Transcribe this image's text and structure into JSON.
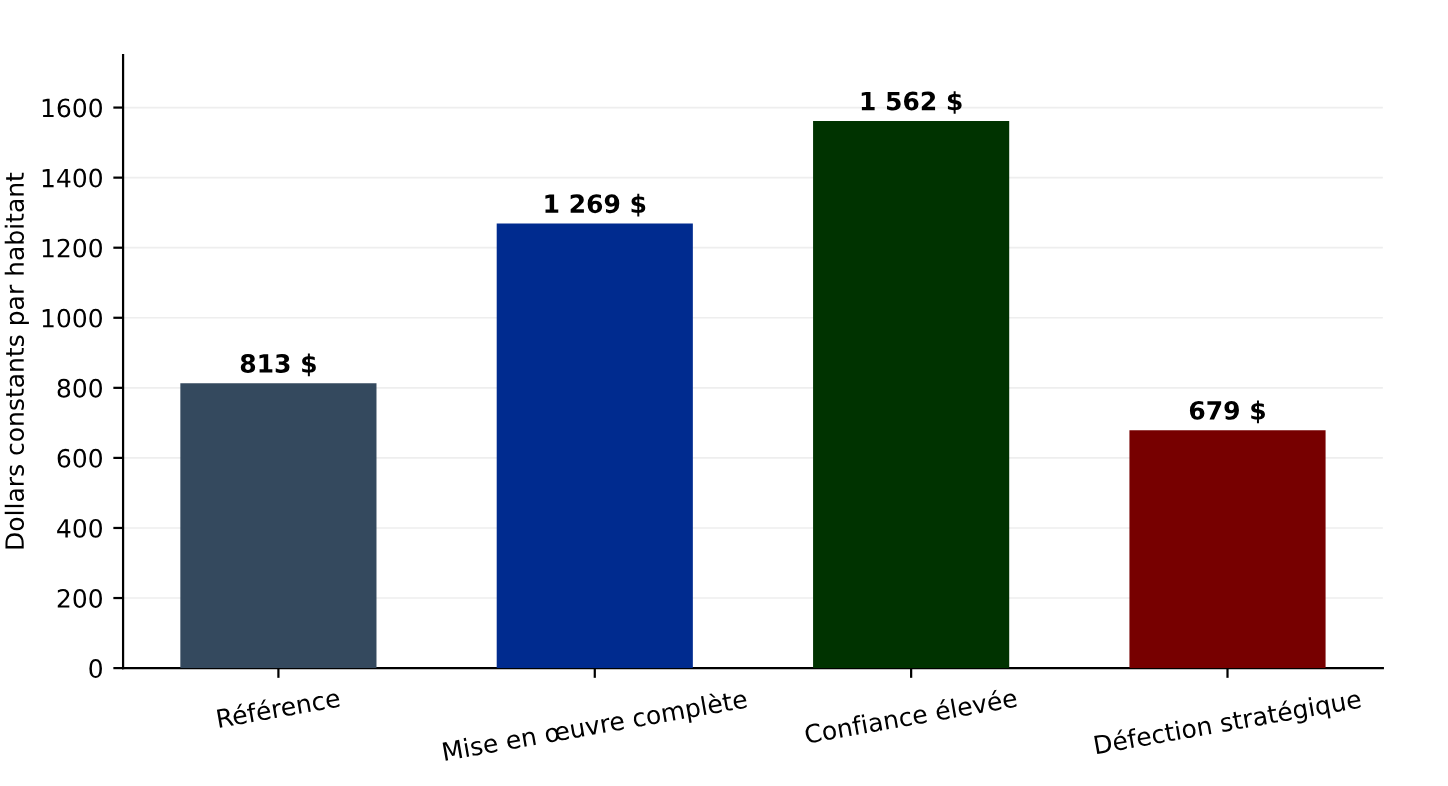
{
  "chart_data": {
    "type": "bar",
    "ylabel": "Dollars constants par habitant",
    "categories": [
      "Référence",
      "Mise en œuvre complète",
      "Confiance élevée",
      "Défection stratégique"
    ],
    "values": [
      813,
      1269,
      1562,
      679
    ],
    "colors": [
      "#34495e",
      "#002b8f",
      "#003300",
      "#770000"
    ],
    "value_labels": [
      "813 $",
      "1 269 $",
      "1 562 $",
      "679 $"
    ],
    "ylim": [
      0,
      1750
    ],
    "yticks": [
      0,
      200,
      400,
      600,
      800,
      1000,
      1200,
      1400,
      1600
    ],
    "grid": "y",
    "legend": false
  }
}
